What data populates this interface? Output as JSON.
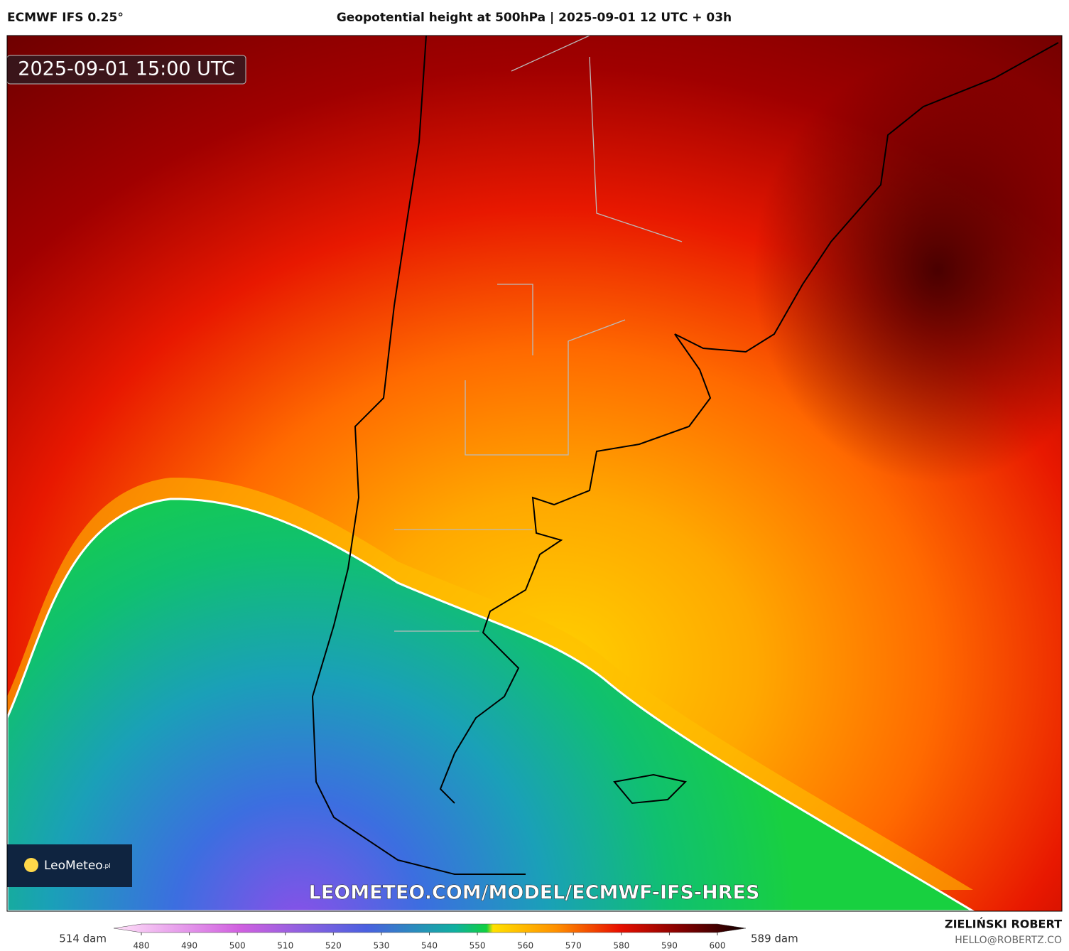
{
  "header": {
    "model": "ECMWF IFS 0.25°",
    "title": "Geopotential height at 500hPa | 2025-09-01 12 UTC + 03h"
  },
  "map": {
    "valid_time": "2025-09-01 15:00 UTC",
    "logo": "LeoMeteo",
    "logo_suffix": ".pl",
    "watermark": "LEOMETEO.COM/MODEL/ECMWF-IFS-HRES"
  },
  "colorbar": {
    "min_label": "514 dam",
    "max_label": "589 dam",
    "ticks": [
      480,
      490,
      500,
      510,
      520,
      530,
      540,
      550,
      560,
      570,
      580,
      590,
      600
    ]
  },
  "footer": {
    "author": "ZIELIŃSKI ROBERT",
    "contact": "HELLO@ROBERTZ.CO"
  }
}
